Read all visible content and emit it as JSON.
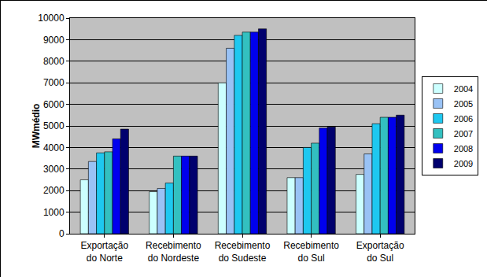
{
  "chart_data": {
    "type": "bar",
    "y_label": "MWmédio",
    "categories": [
      "Exportação do Norte",
      "Recebimento do Nordeste",
      "Recebimento do Sudeste",
      "Recebimento do Sul",
      "Exportação do Sul"
    ],
    "series": [
      {
        "name": "2004",
        "color": "#ccffff",
        "values": [
          2500,
          1950,
          7000,
          2600,
          2750
        ]
      },
      {
        "name": "2005",
        "color": "#99c2f5",
        "values": [
          3350,
          2100,
          8600,
          2600,
          3700
        ]
      },
      {
        "name": "2006",
        "color": "#1ec8f0",
        "values": [
          3750,
          2350,
          9200,
          4000,
          5100
        ]
      },
      {
        "name": "2007",
        "color": "#33c0c0",
        "values": [
          3800,
          3600,
          9350,
          4200,
          5400
        ]
      },
      {
        "name": "2008",
        "color": "#0000ee",
        "values": [
          4400,
          3600,
          9350,
          4900,
          5400
        ]
      },
      {
        "name": "2009",
        "color": "#00006e",
        "values": [
          4850,
          3600,
          9500,
          4950,
          5500
        ]
      }
    ],
    "ylim": [
      0,
      10000
    ],
    "yticks": [
      0,
      1000,
      2000,
      3000,
      4000,
      5000,
      6000,
      7000,
      8000,
      9000,
      10000
    ],
    "grid": true,
    "legend": "right"
  }
}
